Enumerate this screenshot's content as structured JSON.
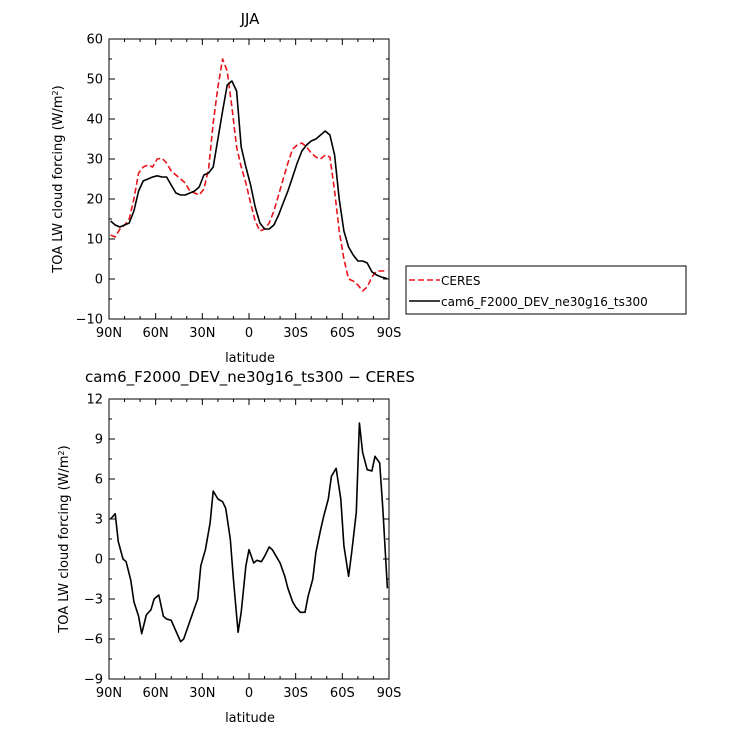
{
  "chart_data": [
    {
      "type": "line",
      "title": "JJA",
      "xlabel": "latitude",
      "ylabel_main": "TOA LW cloud forcing (W/m",
      "ylabel_sup": "2",
      "ylabel_end": ")",
      "xlim": [
        90,
        -90
      ],
      "ylim": [
        -10,
        60
      ],
      "xticks": [
        90,
        60,
        30,
        0,
        -30,
        -60,
        -90
      ],
      "xtick_labels": [
        "90N",
        "60N",
        "30N",
        "0",
        "30S",
        "60S",
        "90S"
      ],
      "yticks": [
        -10,
        0,
        10,
        20,
        30,
        40,
        50,
        60
      ],
      "ytick_labels": [
        "−10",
        "0",
        "10",
        "20",
        "30",
        "40",
        "50",
        "60"
      ],
      "legend_position": "right",
      "series": [
        {
          "name": "CERES",
          "color": "#e8141c",
          "dashed": true,
          "x": [
            89,
            86,
            83,
            80,
            77,
            74,
            71,
            68,
            65,
            62,
            59,
            56,
            53,
            50,
            47,
            44,
            41,
            38,
            35,
            32,
            29,
            26,
            23,
            20,
            17,
            14,
            11,
            8,
            5,
            2,
            -1,
            -4,
            -7,
            -10,
            -13,
            -16,
            -19,
            -22,
            -25,
            -28,
            -31,
            -34,
            -37,
            -40,
            -43,
            -46,
            -49,
            -52,
            -55,
            -58,
            -61,
            -64,
            -67,
            -70,
            -73,
            -76,
            -79,
            -82,
            -85,
            -88,
            -89
          ],
          "y": [
            11,
            10.5,
            12.5,
            13.5,
            15,
            20,
            26.5,
            28,
            28.5,
            28,
            30,
            30.2,
            29,
            27,
            26,
            25,
            24,
            22,
            21.5,
            21,
            22.5,
            27.5,
            39,
            48,
            55,
            52,
            43,
            33,
            28,
            24,
            19,
            14.5,
            12,
            12.5,
            14,
            17,
            21,
            25,
            29,
            32.5,
            33.5,
            34,
            33,
            31.5,
            30.5,
            30,
            31,
            30.5,
            22,
            12,
            5,
            0,
            -0.5,
            -1.5,
            -3,
            -2,
            0.5,
            2,
            2,
            2,
            2
          ]
        },
        {
          "name": "cam6_F2000_DEV_ne30g16_ts300",
          "color": "#000000",
          "dashed": false,
          "x": [
            89,
            86,
            83,
            80,
            77,
            74,
            71,
            68,
            65,
            62,
            59,
            56,
            53,
            50,
            47,
            44,
            41,
            38,
            35,
            32,
            29,
            26,
            23,
            20,
            17,
            14,
            11,
            8,
            5,
            2,
            -1,
            -4,
            -7,
            -10,
            -13,
            -16,
            -19,
            -22,
            -25,
            -28,
            -31,
            -34,
            -37,
            -40,
            -43,
            -46,
            -49,
            -52,
            -55,
            -58,
            -61,
            -64,
            -67,
            -70,
            -73,
            -76,
            -79,
            -82,
            -85,
            -88,
            -89
          ],
          "y": [
            14.5,
            13.5,
            13,
            13.5,
            14,
            17,
            22,
            24.5,
            25,
            25.5,
            25.8,
            25.5,
            25.5,
            23.5,
            21.5,
            21,
            21,
            21.5,
            22,
            23,
            26,
            26.5,
            28,
            35,
            42,
            48.5,
            49.5,
            47,
            33,
            28,
            23.5,
            18,
            14,
            12.5,
            12.5,
            13.5,
            16,
            19,
            22,
            25.5,
            29,
            32,
            33.5,
            34.5,
            35,
            36,
            37,
            36,
            31,
            20,
            12,
            8,
            6,
            4.5,
            4.5,
            4,
            1.8,
            1,
            0.5,
            0.2,
            0
          ]
        }
      ]
    },
    {
      "type": "line",
      "title": "cam6_F2000_DEV_ne30g16_ts300 − CERES",
      "xlabel": "latitude",
      "ylabel_main": "TOA LW cloud forcing (W/m",
      "ylabel_sup": "2",
      "ylabel_end": ")",
      "xlim": [
        90,
        -90
      ],
      "ylim": [
        -9,
        12
      ],
      "xticks": [
        90,
        60,
        30,
        0,
        -30,
        -60,
        -90
      ],
      "xtick_labels": [
        "90N",
        "60N",
        "30N",
        "0",
        "30S",
        "60S",
        "90S"
      ],
      "yticks": [
        -9,
        -6,
        -3,
        0,
        3,
        6,
        9,
        12
      ],
      "ytick_labels": [
        "−9",
        "−6",
        "−3",
        "0",
        "3",
        "6",
        "9",
        "12"
      ],
      "series": [
        {
          "name": "",
          "color": "#000000",
          "dashed": false,
          "x": [
            89,
            86,
            84,
            81,
            79,
            76,
            74,
            71,
            69,
            66,
            63,
            61,
            58,
            55,
            53,
            50,
            47,
            44,
            42,
            39,
            36,
            33,
            31,
            28,
            25,
            23,
            20,
            17,
            15,
            12,
            10,
            7,
            5,
            2,
            0,
            -3,
            -5,
            -8,
            -10,
            -13,
            -15,
            -18,
            -20,
            -23,
            -25,
            -28,
            -30,
            -33,
            -36,
            -38,
            -41,
            -43,
            -46,
            -48,
            -51,
            -53,
            -56,
            -59,
            -61,
            -64,
            -66,
            -69,
            -71,
            -73,
            -76,
            -79,
            -81,
            -84,
            -86,
            -89
          ],
          "y": [
            3,
            3.4,
            1.3,
            0,
            -0.2,
            -1.6,
            -3.2,
            -4.3,
            -5.6,
            -4.2,
            -3.8,
            -3,
            -2.7,
            -4.3,
            -4.5,
            -4.6,
            -5.4,
            -6.2,
            -6,
            -5,
            -4,
            -3,
            -0.5,
            0.7,
            2.7,
            5.1,
            4.5,
            4.3,
            3.8,
            1.5,
            -1.5,
            -5.5,
            -4,
            -0.5,
            0.7,
            -0.3,
            -0.1,
            -0.2,
            0.2,
            0.9,
            0.7,
            0.1,
            -0.3,
            -1.3,
            -2.2,
            -3.2,
            -3.6,
            -4,
            -4,
            -2.8,
            -1.5,
            0.5,
            2.2,
            3.2,
            4.5,
            6.2,
            6.8,
            4.5,
            1,
            -1.3,
            0.5,
            3.5,
            10.2,
            8,
            6.7,
            6.6,
            7.7,
            7.2,
            3.8,
            -2.2
          ]
        }
      ]
    }
  ]
}
